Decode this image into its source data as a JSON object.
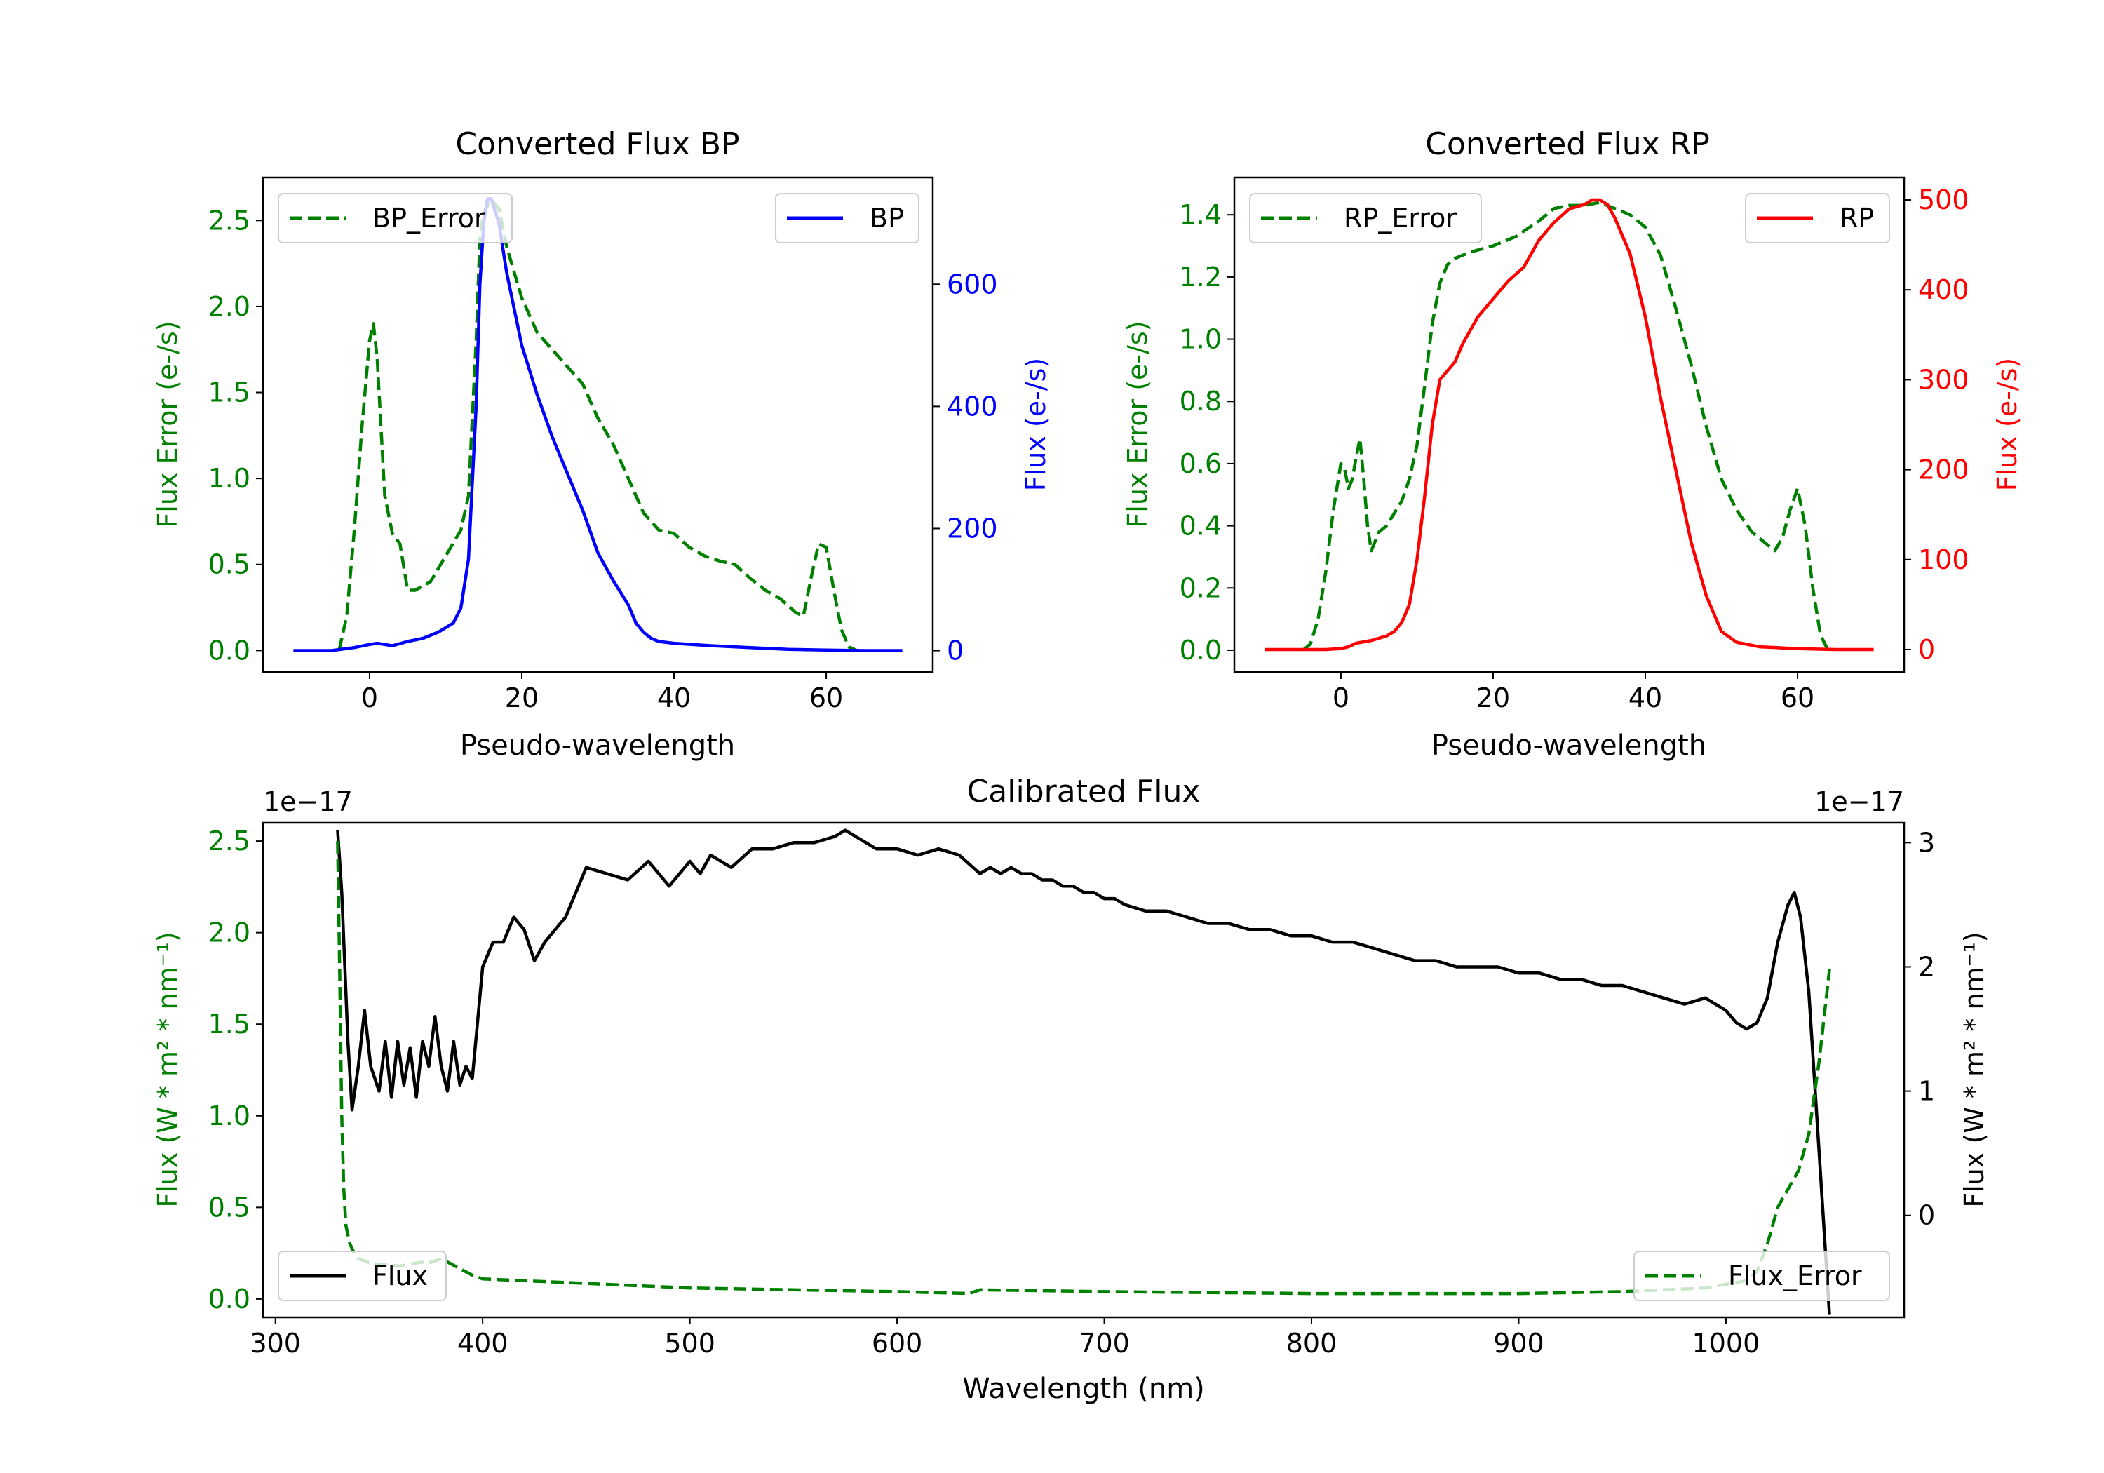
{
  "colors": {
    "error": "#008000",
    "bp": "#0000ff",
    "rp": "#ff0000",
    "flux": "#000000",
    "axis": "#000000"
  },
  "chart_data": [
    {
      "type": "line",
      "title": "Converted Flux BP",
      "xlabel": "Pseudo-wavelength",
      "ylabel_left": "Flux Error (e-/s)",
      "ylabel_right": "Flux (e-/s)",
      "xlim": [
        -14,
        74
      ],
      "ylim_left": [
        -0.125,
        2.75
      ],
      "ylim_right": [
        -35,
        775
      ],
      "xticks": [
        0,
        20,
        40,
        60
      ],
      "yticks_left": [
        "0.0",
        "0.5",
        "1.0",
        "1.5",
        "2.0",
        "2.5"
      ],
      "yticks_right": [
        "0",
        "200",
        "400",
        "600"
      ],
      "legend_left": "BP_Error",
      "legend_right": "BP",
      "series": [
        {
          "name": "BP_Error",
          "axis": "left",
          "style": "dashed",
          "color": "#008000",
          "x": [
            -4,
            -3,
            -2,
            -1,
            0,
            0.5,
            1,
            2,
            3,
            4,
            5,
            6,
            8,
            10,
            12,
            13,
            14,
            14.5,
            15,
            16,
            17,
            18,
            19,
            20,
            22,
            25,
            28,
            30,
            32,
            34,
            36,
            38,
            40,
            42,
            44,
            46,
            48,
            50,
            52,
            54,
            56,
            57,
            58,
            59,
            60,
            61,
            62,
            63,
            64
          ],
          "y": [
            0.0,
            0.2,
            0.7,
            1.3,
            1.8,
            1.9,
            1.7,
            0.9,
            0.68,
            0.62,
            0.35,
            0.35,
            0.4,
            0.55,
            0.7,
            0.9,
            1.8,
            2.4,
            2.55,
            2.62,
            2.57,
            2.35,
            2.2,
            2.05,
            1.85,
            1.7,
            1.55,
            1.35,
            1.2,
            1.0,
            0.8,
            0.7,
            0.68,
            0.6,
            0.55,
            0.52,
            0.5,
            0.42,
            0.35,
            0.3,
            0.22,
            0.2,
            0.42,
            0.62,
            0.6,
            0.35,
            0.12,
            0.02,
            0.0
          ]
        },
        {
          "name": "BP",
          "axis": "right",
          "style": "solid",
          "color": "#0000ff",
          "x": [
            -10,
            -5,
            -2,
            0,
            1,
            2,
            3,
            5,
            7,
            9,
            11,
            12,
            13,
            14,
            14.5,
            15,
            15.5,
            16,
            17,
            18,
            19,
            20,
            22,
            24,
            26,
            28,
            30,
            32,
            34,
            35,
            36,
            37,
            38,
            40,
            45,
            50,
            55,
            60,
            65,
            70
          ],
          "y": [
            0,
            0,
            5,
            10,
            12,
            10,
            8,
            15,
            20,
            30,
            45,
            70,
            150,
            400,
            600,
            700,
            740,
            740,
            700,
            620,
            560,
            500,
            420,
            350,
            290,
            230,
            160,
            115,
            75,
            45,
            30,
            20,
            15,
            12,
            8,
            5,
            2,
            1,
            0,
            0
          ]
        }
      ]
    },
    {
      "type": "line",
      "title": "Converted Flux RP",
      "xlabel": "Pseudo-wavelength",
      "ylabel_left": "Flux Error (e-/s)",
      "ylabel_right": "Flux (e-/s)",
      "xlim": [
        -14,
        74
      ],
      "ylim_left": [
        -0.07,
        1.52
      ],
      "ylim_right": [
        -25,
        525
      ],
      "xticks": [
        0,
        20,
        40,
        60
      ],
      "yticks_left": [
        "0.0",
        "0.2",
        "0.4",
        "0.6",
        "0.8",
        "1.0",
        "1.2",
        "1.4"
      ],
      "yticks_right": [
        "0",
        "100",
        "200",
        "300",
        "400",
        "500"
      ],
      "legend_left": "RP_Error",
      "legend_right": "RP",
      "series": [
        {
          "name": "RP_Error",
          "axis": "left",
          "style": "dashed",
          "color": "#008000",
          "x": [
            -5,
            -4,
            -3,
            -2,
            -1,
            0,
            0.5,
            1,
            1.5,
            2,
            2.5,
            3,
            3.5,
            4,
            5,
            6,
            7,
            8,
            9,
            10,
            11,
            12,
            13,
            14,
            15,
            17,
            20,
            23,
            26,
            28,
            30,
            32,
            34,
            36,
            38,
            40,
            42,
            44,
            46,
            48,
            50,
            52,
            54,
            55,
            56,
            57,
            58,
            59,
            60,
            61,
            62,
            63,
            64
          ],
          "y": [
            0.0,
            0.02,
            0.1,
            0.25,
            0.45,
            0.6,
            0.58,
            0.52,
            0.55,
            0.62,
            0.68,
            0.55,
            0.4,
            0.32,
            0.38,
            0.4,
            0.44,
            0.48,
            0.55,
            0.66,
            0.85,
            1.05,
            1.18,
            1.24,
            1.26,
            1.28,
            1.3,
            1.33,
            1.38,
            1.42,
            1.43,
            1.43,
            1.44,
            1.42,
            1.4,
            1.36,
            1.27,
            1.1,
            0.92,
            0.72,
            0.55,
            0.45,
            0.38,
            0.36,
            0.34,
            0.32,
            0.36,
            0.45,
            0.52,
            0.4,
            0.2,
            0.05,
            0.0
          ]
        },
        {
          "name": "RP",
          "axis": "right",
          "style": "solid",
          "color": "#ff0000",
          "x": [
            -10,
            -5,
            -2,
            0,
            1,
            2,
            4,
            6,
            7,
            8,
            9,
            10,
            11,
            12,
            13,
            14,
            15,
            16,
            18,
            20,
            22,
            24,
            26,
            28,
            30,
            32,
            33,
            34,
            35,
            36,
            38,
            40,
            42,
            44,
            46,
            48,
            50,
            52,
            55,
            60,
            65,
            70
          ],
          "y": [
            0,
            0,
            0,
            1,
            3,
            7,
            10,
            15,
            20,
            30,
            50,
            100,
            170,
            250,
            300,
            310,
            320,
            340,
            370,
            390,
            410,
            425,
            455,
            475,
            490,
            495,
            500,
            500,
            495,
            480,
            440,
            370,
            280,
            200,
            120,
            60,
            20,
            8,
            3,
            1,
            0,
            0
          ]
        }
      ]
    },
    {
      "type": "line",
      "title": "Calibrated Flux",
      "xlabel": "Wavelength (nm)",
      "ylabel_left": "Flux (W * m² * nm⁻¹)",
      "ylabel_right": "Flux (W * m² * nm⁻¹)",
      "offset_left": "1e−17",
      "offset_right": "1e−17",
      "xlim": [
        294,
        1086
      ],
      "ylim_left": [
        -0.1,
        2.6
      ],
      "ylim_right": [
        -0.82,
        3.16
      ],
      "xticks": [
        300,
        400,
        500,
        600,
        700,
        800,
        900,
        1000
      ],
      "yticks_left": [
        "0.0",
        "0.5",
        "1.0",
        "1.5",
        "2.0",
        "2.5"
      ],
      "yticks_right": [
        "0",
        "1",
        "2",
        "3"
      ],
      "legend_left": "Flux",
      "legend_right": "Flux_Error",
      "series": [
        {
          "name": "Flux",
          "axis": "right",
          "style": "solid",
          "color": "#000000",
          "x": [
            330,
            332,
            335,
            337,
            340,
            343,
            346,
            350,
            353,
            356,
            359,
            362,
            365,
            368,
            371,
            374,
            377,
            380,
            383,
            386,
            389,
            392,
            395,
            400,
            405,
            410,
            415,
            420,
            425,
            430,
            440,
            450,
            460,
            470,
            480,
            490,
            500,
            505,
            510,
            520,
            530,
            540,
            550,
            560,
            570,
            575,
            580,
            590,
            600,
            610,
            620,
            630,
            640,
            645,
            650,
            655,
            660,
            665,
            670,
            675,
            680,
            685,
            690,
            695,
            700,
            705,
            710,
            720,
            730,
            740,
            750,
            760,
            770,
            780,
            790,
            800,
            810,
            820,
            830,
            840,
            850,
            860,
            870,
            880,
            890,
            900,
            910,
            920,
            930,
            940,
            950,
            960,
            970,
            980,
            990,
            1000,
            1005,
            1010,
            1015,
            1020,
            1025,
            1030,
            1033,
            1036,
            1040,
            1045,
            1050
          ],
          "y": [
            3.1,
            2.6,
            1.4,
            0.85,
            1.2,
            1.65,
            1.2,
            1.0,
            1.4,
            0.95,
            1.4,
            1.05,
            1.35,
            0.95,
            1.4,
            1.2,
            1.6,
            1.2,
            1.0,
            1.4,
            1.05,
            1.2,
            1.1,
            2.0,
            2.2,
            2.2,
            2.4,
            2.3,
            2.05,
            2.2,
            2.4,
            2.8,
            2.75,
            2.7,
            2.85,
            2.65,
            2.85,
            2.75,
            2.9,
            2.8,
            2.95,
            2.95,
            3.0,
            3.0,
            3.05,
            3.1,
            3.05,
            2.95,
            2.95,
            2.9,
            2.95,
            2.9,
            2.75,
            2.8,
            2.75,
            2.8,
            2.75,
            2.75,
            2.7,
            2.7,
            2.65,
            2.65,
            2.6,
            2.6,
            2.55,
            2.55,
            2.5,
            2.45,
            2.45,
            2.4,
            2.35,
            2.35,
            2.3,
            2.3,
            2.25,
            2.25,
            2.2,
            2.2,
            2.15,
            2.1,
            2.05,
            2.05,
            2.0,
            2.0,
            2.0,
            1.95,
            1.95,
            1.9,
            1.9,
            1.85,
            1.85,
            1.8,
            1.75,
            1.7,
            1.75,
            1.65,
            1.55,
            1.5,
            1.55,
            1.75,
            2.2,
            2.5,
            2.6,
            2.4,
            1.8,
            0.5,
            -0.8
          ]
        },
        {
          "name": "Flux_Error",
          "axis": "left",
          "style": "dashed",
          "color": "#008000",
          "x": [
            330,
            331,
            332,
            333,
            334,
            336,
            338,
            340,
            345,
            350,
            360,
            370,
            375,
            380,
            385,
            390,
            395,
            400,
            420,
            440,
            460,
            480,
            500,
            550,
            600,
            635,
            640,
            700,
            800,
            900,
            950,
            990,
            1000,
            1010,
            1015,
            1020,
            1025,
            1030,
            1035,
            1040,
            1045,
            1050
          ],
          "y": [
            2.5,
            1.8,
            1.0,
            0.6,
            0.4,
            0.3,
            0.25,
            0.22,
            0.2,
            0.19,
            0.18,
            0.2,
            0.2,
            0.22,
            0.19,
            0.16,
            0.13,
            0.11,
            0.1,
            0.09,
            0.08,
            0.07,
            0.06,
            0.05,
            0.04,
            0.03,
            0.05,
            0.04,
            0.03,
            0.03,
            0.04,
            0.06,
            0.08,
            0.1,
            0.15,
            0.3,
            0.5,
            0.6,
            0.7,
            0.9,
            1.3,
            1.8
          ]
        }
      ]
    }
  ]
}
